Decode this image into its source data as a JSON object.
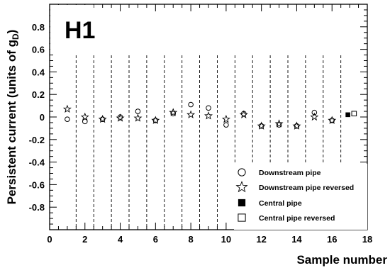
{
  "chart_data": {
    "type": "scatter",
    "panel_label": "H1",
    "xlabel": "Sample number",
    "ylabel_main": "Persistent current (units of g",
    "ylabel_sub": "D",
    "ylabel_close": ")",
    "xlim": [
      0,
      18
    ],
    "ylim": [
      -1,
      1
    ],
    "x_ticks": [
      0,
      2,
      4,
      6,
      8,
      10,
      12,
      14,
      16,
      18
    ],
    "x_tick_labels": [
      "0",
      "2",
      "4",
      "6",
      "8",
      "10",
      "12",
      "14",
      "16",
      "18"
    ],
    "y_ticks": [
      -0.8,
      -0.6,
      -0.4,
      -0.2,
      0,
      0.2,
      0.4,
      0.6,
      0.8
    ],
    "y_tick_labels": [
      "-0.8",
      "-0.6",
      "-0.4",
      "-0.2",
      "0",
      "0.2",
      "0.4",
      "0.6",
      "0.8"
    ],
    "sample_boundaries": [
      1.5,
      2.5,
      3.5,
      4.5,
      5.5,
      6.5,
      7.5,
      8.5,
      9.5,
      10.5,
      11.5,
      12.5,
      13.5,
      14.5,
      15.5,
      16.5
    ],
    "legend_placement": "bottom-right",
    "series": [
      {
        "name": "Downstream pipe",
        "marker": "open-circle",
        "x": [
          1,
          2,
          3,
          4,
          5,
          6,
          7,
          8,
          9,
          10,
          11,
          12,
          13,
          14,
          15,
          16
        ],
        "y": [
          -0.02,
          -0.04,
          -0.02,
          0.0,
          0.05,
          -0.03,
          0.03,
          0.11,
          0.08,
          -0.07,
          0.03,
          -0.08,
          -0.07,
          -0.08,
          0.04,
          -0.03
        ]
      },
      {
        "name": "Downstream pipe reversed",
        "marker": "open-star",
        "x": [
          1,
          2,
          3,
          4,
          5,
          6,
          7,
          8,
          9,
          10,
          11,
          12,
          13,
          14,
          15,
          16
        ],
        "y": [
          0.07,
          0.0,
          -0.02,
          -0.01,
          -0.01,
          -0.03,
          0.04,
          0.02,
          0.01,
          -0.02,
          0.02,
          -0.08,
          -0.06,
          -0.08,
          0.0,
          -0.03
        ]
      },
      {
        "name": "Central pipe",
        "marker": "filled-square",
        "x": [
          16.9
        ],
        "y": [
          0.02
        ]
      },
      {
        "name": "Central pipe reversed",
        "marker": "open-square",
        "x": [
          17.25
        ],
        "y": [
          0.03
        ]
      }
    ]
  }
}
